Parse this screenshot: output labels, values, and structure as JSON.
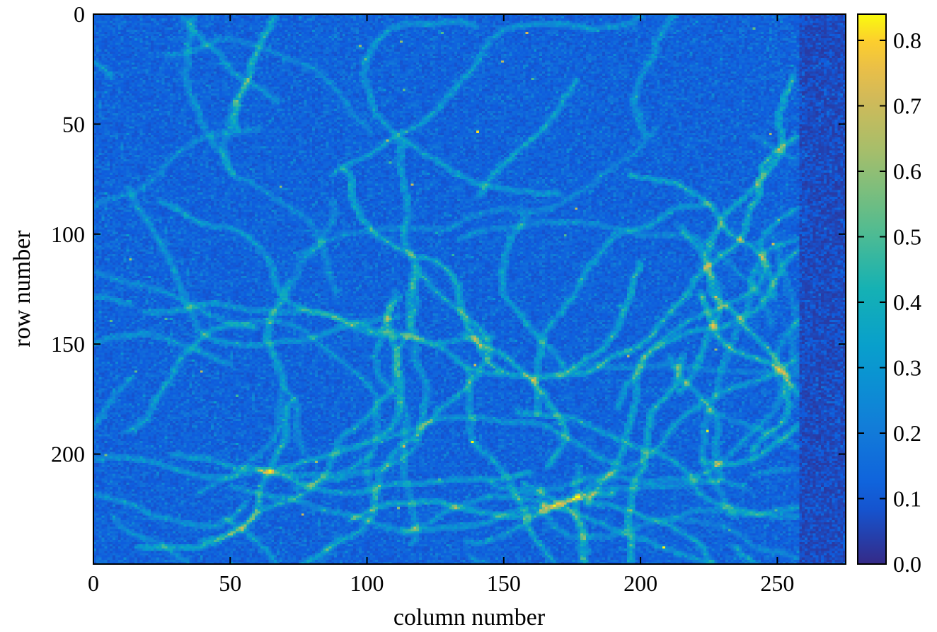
{
  "chart_data": {
    "type": "heatmap",
    "title": "",
    "xlabel": "column number",
    "ylabel": "row number",
    "xlim": [
      0,
      275
    ],
    "ylim": [
      250,
      0
    ],
    "x_ticks": [
      0,
      50,
      100,
      150,
      200,
      250
    ],
    "y_ticks": [
      0,
      50,
      100,
      150,
      200
    ],
    "x_tick_labels": [
      "0",
      "50",
      "100",
      "150",
      "200",
      "250"
    ],
    "y_tick_labels": [
      "0",
      "50",
      "100",
      "150",
      "200"
    ],
    "colorbar": {
      "colormap": "parula",
      "range": [
        0.0,
        0.84
      ],
      "ticks": [
        0.0,
        0.1,
        0.2,
        0.3,
        0.4,
        0.5,
        0.6,
        0.7,
        0.8
      ],
      "tick_labels": [
        "0.0",
        "0.1",
        "0.2",
        "0.3",
        "0.4",
        "0.5",
        "0.6",
        "0.7",
        "0.8"
      ]
    },
    "data_description": {
      "rows": 250,
      "columns": 275,
      "background_level": 0.08,
      "noise_level": 0.06,
      "max_value": 0.84,
      "signal_region_columns": [
        0,
        258
      ]
    },
    "colors": {
      "low": "#352a87",
      "mid": "#1a8bd9",
      "high": "#f9fb0e"
    }
  }
}
